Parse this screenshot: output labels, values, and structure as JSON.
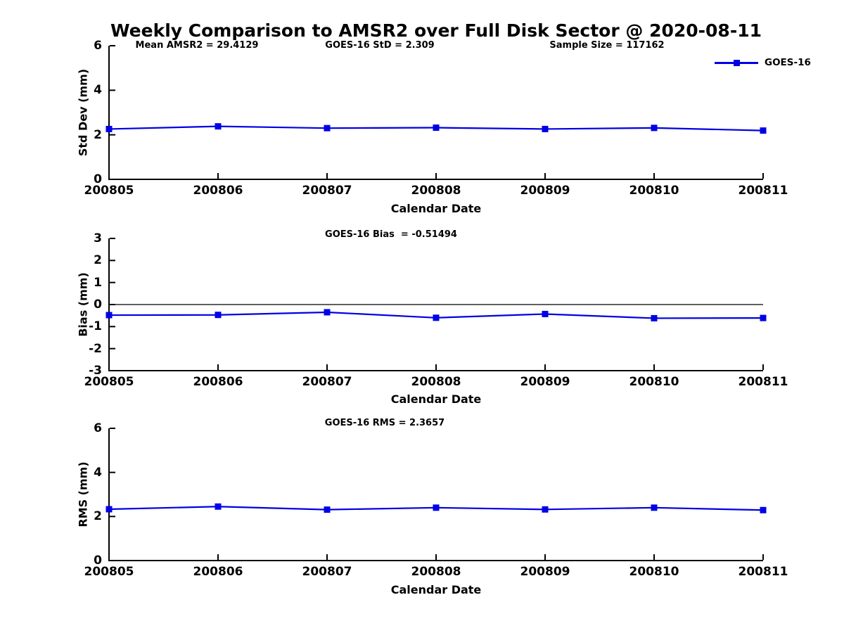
{
  "title": "Weekly Comparison to AMSR2 over Full Disk Sector @ 2020-08-11",
  "legend": {
    "label": "GOES-16"
  },
  "colors": {
    "series": "#0000e6",
    "axis": "#000000",
    "text": "#000000"
  },
  "chart_data": [
    {
      "type": "line",
      "name": "std-dev-panel",
      "annotations": [
        "Mean AMSR2 = 29.4129",
        "GOES-16 StD = 2.309",
        "Sample Size = 117162"
      ],
      "title": "",
      "xlabel": "Calendar Date",
      "ylabel": "Std Dev (mm)",
      "categories": [
        "200805",
        "200806",
        "200807",
        "200808",
        "200809",
        "200810",
        "200811"
      ],
      "series": [
        {
          "name": "GOES-16",
          "values": [
            2.26,
            2.38,
            2.3,
            2.32,
            2.26,
            2.31,
            2.19
          ]
        }
      ],
      "ylim": [
        0,
        6
      ],
      "yticks": [
        "0",
        "2",
        "4",
        "6"
      ],
      "grid": false,
      "zero_line": false,
      "legend_position": "top-right-inside"
    },
    {
      "type": "line",
      "name": "bias-panel",
      "annotations": [
        "GOES-16 Bias  = -0.51494"
      ],
      "title": "",
      "xlabel": "Calendar Date",
      "ylabel": "Bias (mm)",
      "categories": [
        "200805",
        "200806",
        "200807",
        "200808",
        "200809",
        "200810",
        "200811"
      ],
      "series": [
        {
          "name": "GOES-16",
          "values": [
            -0.48,
            -0.47,
            -0.35,
            -0.6,
            -0.43,
            -0.62,
            -0.61
          ]
        }
      ],
      "ylim": [
        -3,
        3
      ],
      "yticks": [
        "-3",
        "-2",
        "-1",
        "0",
        "1",
        "2",
        "3"
      ],
      "grid": false,
      "zero_line": true,
      "legend_position": "none"
    },
    {
      "type": "line",
      "name": "rms-panel",
      "annotations": [
        "GOES-16 RMS = 2.3657"
      ],
      "title": "",
      "xlabel": "Calendar Date",
      "ylabel": "RMS (mm)",
      "categories": [
        "200805",
        "200806",
        "200807",
        "200808",
        "200809",
        "200810",
        "200811"
      ],
      "series": [
        {
          "name": "GOES-16",
          "values": [
            2.33,
            2.45,
            2.31,
            2.4,
            2.32,
            2.4,
            2.29
          ]
        }
      ],
      "ylim": [
        0,
        6
      ],
      "yticks": [
        "0",
        "2",
        "4",
        "6"
      ],
      "grid": false,
      "zero_line": false,
      "legend_position": "none"
    }
  ]
}
